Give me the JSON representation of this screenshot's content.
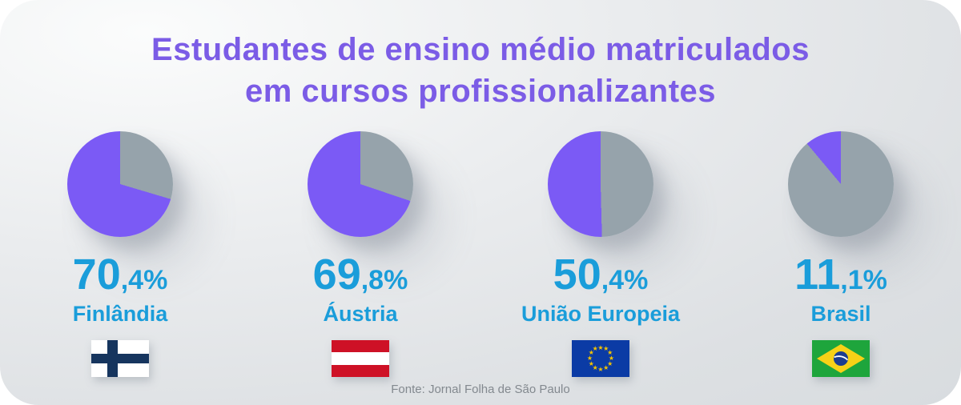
{
  "title": {
    "line1": "Estudantes de ensino médio matriculados",
    "line2": "em cursos profissionalizantes"
  },
  "source": "Fonte: Jornal Folha de São Paulo",
  "colors": {
    "title": "#7B5CE6",
    "pie_filled": "#7B5AF5",
    "pie_rest": "#96A3AB",
    "value_text": "#1A9DDA",
    "source_text": "#83898F",
    "card_bg_light": "#FBFCFC",
    "card_bg_dark": "#D8DCDF"
  },
  "flags": {
    "finland": {
      "field": "#FFFFFF",
      "cross": "#16355E"
    },
    "austria": {
      "red": "#CE1126",
      "white": "#FFFFFF"
    },
    "eu": {
      "field": "#0B3BA5",
      "stars": "#F5C400",
      "star_count": 12
    },
    "brazil": {
      "field": "#1EA53C",
      "diamond": "#F7D117",
      "globe": "#1C3D8F",
      "band": "#FFFFFF"
    }
  },
  "chart_data": {
    "type": "pie",
    "title": "Estudantes de ensino médio matriculados em cursos profissionalizantes",
    "unit": "%",
    "legend_position": "none",
    "series": [
      {
        "label": "Finlândia",
        "value": 70.4,
        "value_int": "70",
        "value_frac": ",4%",
        "flag": "finland"
      },
      {
        "label": "Áustria",
        "value": 69.8,
        "value_int": "69",
        "value_frac": ",8%",
        "flag": "austria"
      },
      {
        "label": "União Europeia",
        "value": 50.4,
        "value_int": "50",
        "value_frac": ",4%",
        "flag": "eu"
      },
      {
        "label": "Brasil",
        "value": 11.1,
        "value_int": "11",
        "value_frac": ",1%",
        "flag": "brazil"
      }
    ]
  }
}
